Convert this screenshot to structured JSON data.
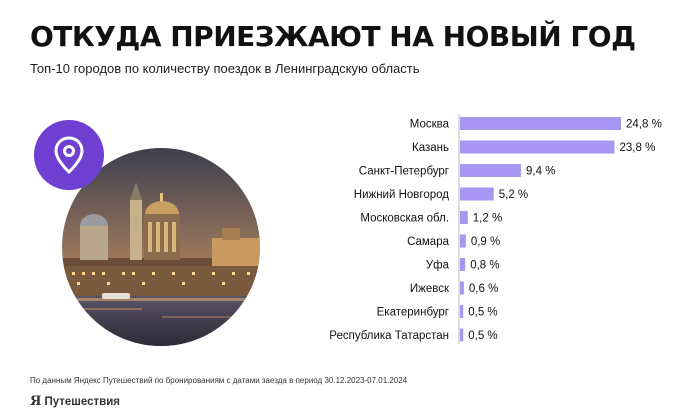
{
  "title": "ОТКУДА ПРИЕЗЖАЮТ НА НОВЫЙ ГОД",
  "subtitle": "Топ-10 городов по количеству поездок в Ленинградскую область",
  "footnote": "По данным Яндекс Путешествий по бронированиям с датами заезда в период 30.12.2023-07.01.2024",
  "logo": {
    "mark": "Я",
    "text": "Путешествия"
  },
  "badge_icon": "location-pin-icon",
  "photo_subject": "st-petersburg-panorama",
  "colors": {
    "bar": "#a896f3",
    "badge": "#6e3fd1",
    "axis": "#bbbbbb"
  },
  "chart_data": {
    "type": "bar",
    "orientation": "horizontal",
    "categories": [
      "Москва",
      "Казань",
      "Санкт-Петербург",
      "Нижний Новгород",
      "Московская обл.",
      "Самара",
      "Уфа",
      "Ижевск",
      "Екатеринбург",
      "Республика Татарстан"
    ],
    "values": [
      24.8,
      23.8,
      9.4,
      5.2,
      1.2,
      0.9,
      0.8,
      0.6,
      0.5,
      0.5
    ],
    "labels": [
      "24,8 %",
      "23,8 %",
      "9,4 %",
      "5,2 %",
      "1,2 %",
      "0,9 %",
      "0,8 %",
      "0,6 %",
      "0,5 %",
      "0,5 %"
    ],
    "xlim": [
      0,
      24.8
    ],
    "grid": false,
    "legend": "none"
  }
}
